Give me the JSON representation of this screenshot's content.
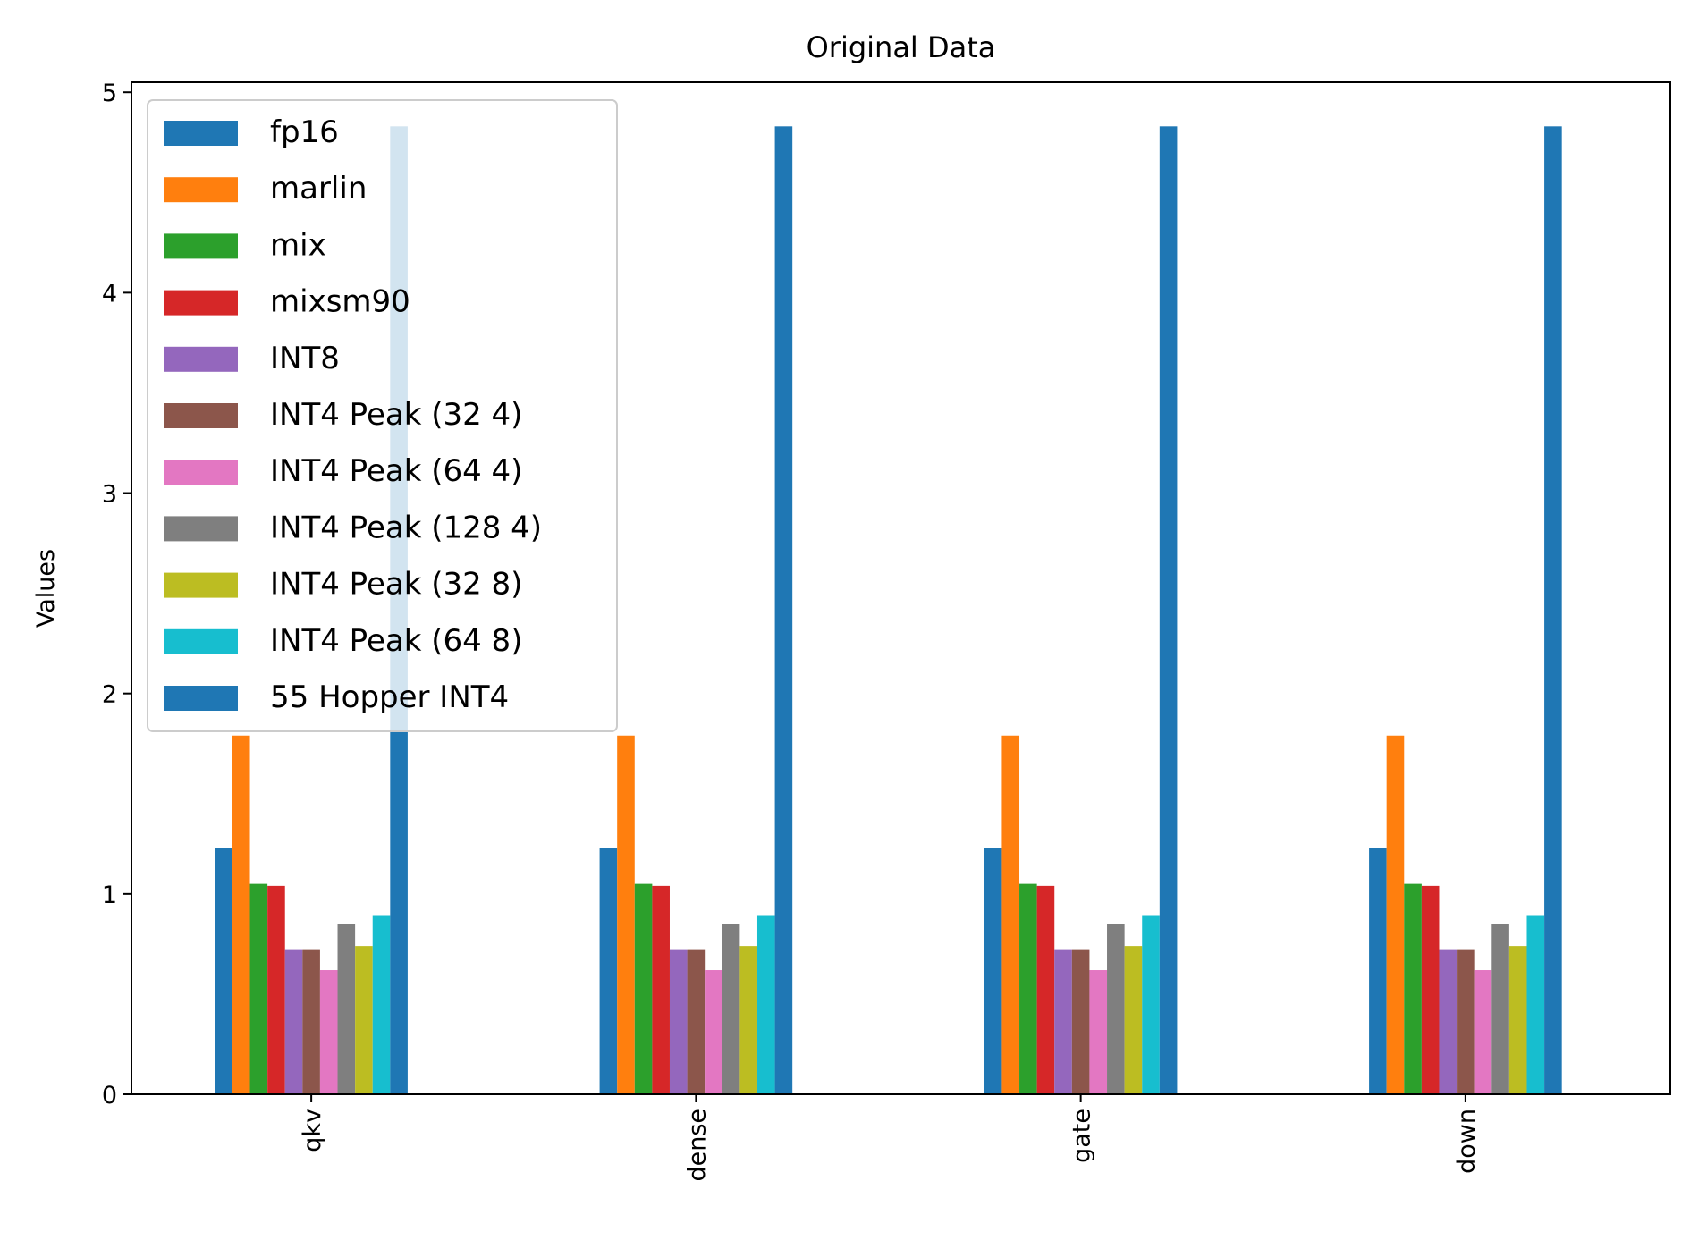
{
  "chart_data": {
    "type": "bar",
    "title": "Original Data",
    "xlabel": "",
    "ylabel": "Values",
    "ylim": [
      0,
      5.05
    ],
    "yticks": [
      0,
      1,
      2,
      3,
      4,
      5
    ],
    "categories": [
      "qkv",
      "dense",
      "gate",
      "down"
    ],
    "grid": false,
    "legend_position": "top-left",
    "series": [
      {
        "name": "fp16",
        "color": "#1f77b4",
        "values": [
          1.23,
          1.23,
          1.23,
          1.23
        ]
      },
      {
        "name": "marlin",
        "color": "#ff7f0e",
        "values": [
          1.79,
          1.79,
          1.79,
          1.79
        ]
      },
      {
        "name": "mix",
        "color": "#2ca02c",
        "values": [
          1.05,
          1.05,
          1.05,
          1.05
        ]
      },
      {
        "name": "mixsm90",
        "color": "#d62728",
        "values": [
          1.04,
          1.04,
          1.04,
          1.04
        ]
      },
      {
        "name": "INT8",
        "color": "#9467bd",
        "values": [
          0.72,
          0.72,
          0.72,
          0.72
        ]
      },
      {
        "name": "INT4 Peak (32 4)",
        "color": "#8c564b",
        "values": [
          0.72,
          0.72,
          0.72,
          0.72
        ]
      },
      {
        "name": "INT4 Peak (64 4)",
        "color": "#e377c2",
        "values": [
          0.62,
          0.62,
          0.62,
          0.62
        ]
      },
      {
        "name": "INT4 Peak (128 4)",
        "color": "#7f7f7f",
        "values": [
          0.85,
          0.85,
          0.85,
          0.85
        ]
      },
      {
        "name": "INT4 Peak (32 8)",
        "color": "#bcbd22",
        "values": [
          0.74,
          0.74,
          0.74,
          0.74
        ]
      },
      {
        "name": "INT4 Peak (64 8)",
        "color": "#17becf",
        "values": [
          0.89,
          0.89,
          0.89,
          0.89
        ]
      },
      {
        "name": "55 Hopper INT4",
        "color": "#1f77b4",
        "values": [
          4.83,
          4.83,
          4.83,
          4.83
        ]
      }
    ]
  }
}
